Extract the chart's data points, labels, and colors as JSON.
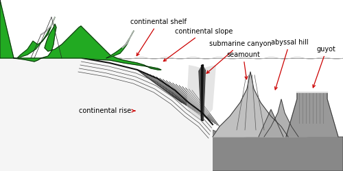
{
  "background_color": "#ffffff",
  "labels": {
    "continental_shelf": "continental shelf",
    "continental_slope": "continental slope",
    "submarine_canyon": "submarine canyon",
    "seamount": "seamount",
    "abyssal_hill": "abyssal hill",
    "guyot": "guyot",
    "continental_rise": "continental rise"
  },
  "arrow_color": "#cc0000",
  "text_color": "#000000",
  "font_size": 7,
  "mountain_green": "#22aa22",
  "mountain_gray": "#888888",
  "slope_gray": "#aaaaaa",
  "abyssal_gray": "#999999",
  "dark_gray": "#666666",
  "contour_dark": "#222222"
}
